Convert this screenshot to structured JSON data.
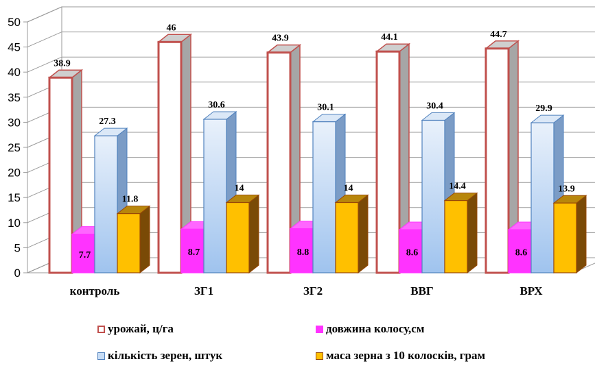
{
  "chart_data": {
    "type": "bar",
    "categories": [
      "контроль",
      "ЗГ1",
      "ЗГ2",
      "ВВГ",
      "ВРХ"
    ],
    "series": [
      {
        "name": "урожай, ц/га",
        "values": [
          38.9,
          46,
          43.9,
          44.1,
          44.7
        ],
        "value_labels": [
          "38.9",
          "46",
          "43.9",
          "44.1",
          "44.7"
        ],
        "color": "#ffffff",
        "border": "#c0504d"
      },
      {
        "name": "довжина колосу,см",
        "values": [
          7.7,
          8.7,
          8.8,
          8.6,
          8.6
        ],
        "value_labels": [
          "7.7",
          "8.7",
          "8.8",
          "8.6",
          "8.6"
        ],
        "color": "#ff33ff",
        "border": "#ff33ff"
      },
      {
        "name": "кількість зерен, штук",
        "values": [
          27.3,
          30.6,
          30.1,
          30.4,
          29.9
        ],
        "value_labels": [
          "27.3",
          "30.6",
          "30.1",
          "30.4",
          "29.9"
        ],
        "color": "#c6dcf5",
        "border": "#4f81bd"
      },
      {
        "name": "маса зерна з 10 колосків, грам",
        "values": [
          11.8,
          14,
          14,
          14.4,
          13.9
        ],
        "value_labels": [
          "11.8",
          "14",
          "14",
          "14.4",
          "13.9"
        ],
        "color": "#ffc000",
        "border": "#984807"
      }
    ],
    "y_ticks": [
      "0",
      "5",
      "10",
      "15",
      "20",
      "25",
      "30",
      "35",
      "40",
      "45",
      "50"
    ],
    "ylim": [
      0,
      50
    ],
    "grid": true,
    "legend_position": "bottom",
    "title": "",
    "xlabel": "",
    "ylabel": ""
  }
}
